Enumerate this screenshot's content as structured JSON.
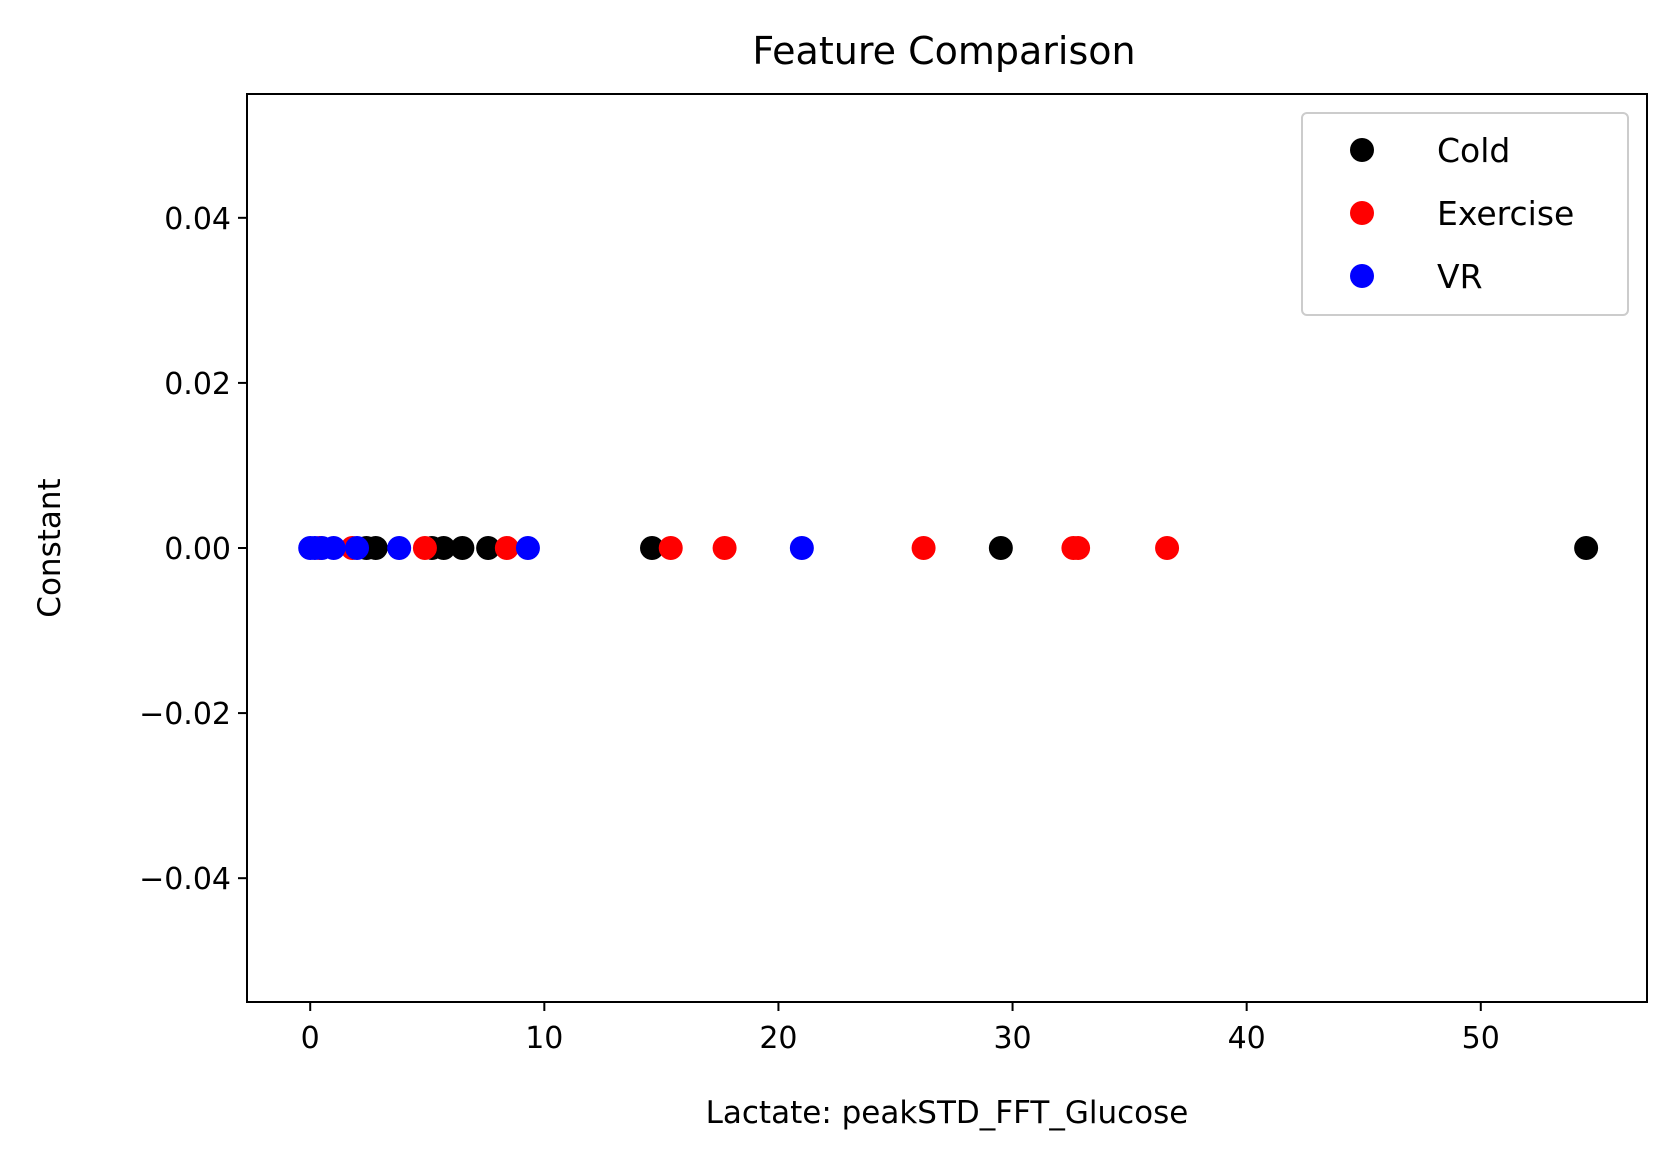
{
  "chart_data": {
    "type": "scatter",
    "title": "Feature Comparison",
    "xlabel": "Lactate: peakSTD_FFT_Glucose",
    "ylabel": "Constant",
    "xlim": [
      -2.7,
      57.1
    ],
    "ylim": [
      -0.055,
      0.055
    ],
    "x_ticks": [
      0,
      10,
      20,
      30,
      40,
      50
    ],
    "x_tick_labels": [
      "0",
      "10",
      "20",
      "30",
      "40",
      "50"
    ],
    "y_ticks": [
      0.04,
      0.02,
      0.0,
      -0.02,
      -0.04
    ],
    "y_tick_labels": [
      "0.04",
      "0.02",
      "0.00",
      "−0.02",
      "−0.04"
    ],
    "grid": false,
    "legend_position": "top-right",
    "series": [
      {
        "name": "Cold",
        "color": "#000000",
        "x": [
          2.4,
          2.8,
          5.2,
          5.7,
          6.5,
          7.6,
          14.6,
          29.5,
          54.5
        ],
        "y": [
          0,
          0,
          0,
          0,
          0,
          0,
          0,
          0,
          0
        ]
      },
      {
        "name": "Exercise",
        "color": "#ff0000",
        "x": [
          0.4,
          1.8,
          4.9,
          8.4,
          15.4,
          17.7,
          26.2,
          32.6,
          32.8,
          36.6
        ],
        "y": [
          0,
          0,
          0,
          0,
          0,
          0,
          0,
          0,
          0,
          0
        ]
      },
      {
        "name": "VR",
        "color": "#0000ff",
        "x": [
          0.0,
          0.2,
          0.5,
          1.0,
          2.0,
          3.8,
          9.3,
          21.0
        ],
        "y": [
          0,
          0,
          0,
          0,
          0,
          0,
          0,
          0
        ]
      }
    ]
  }
}
